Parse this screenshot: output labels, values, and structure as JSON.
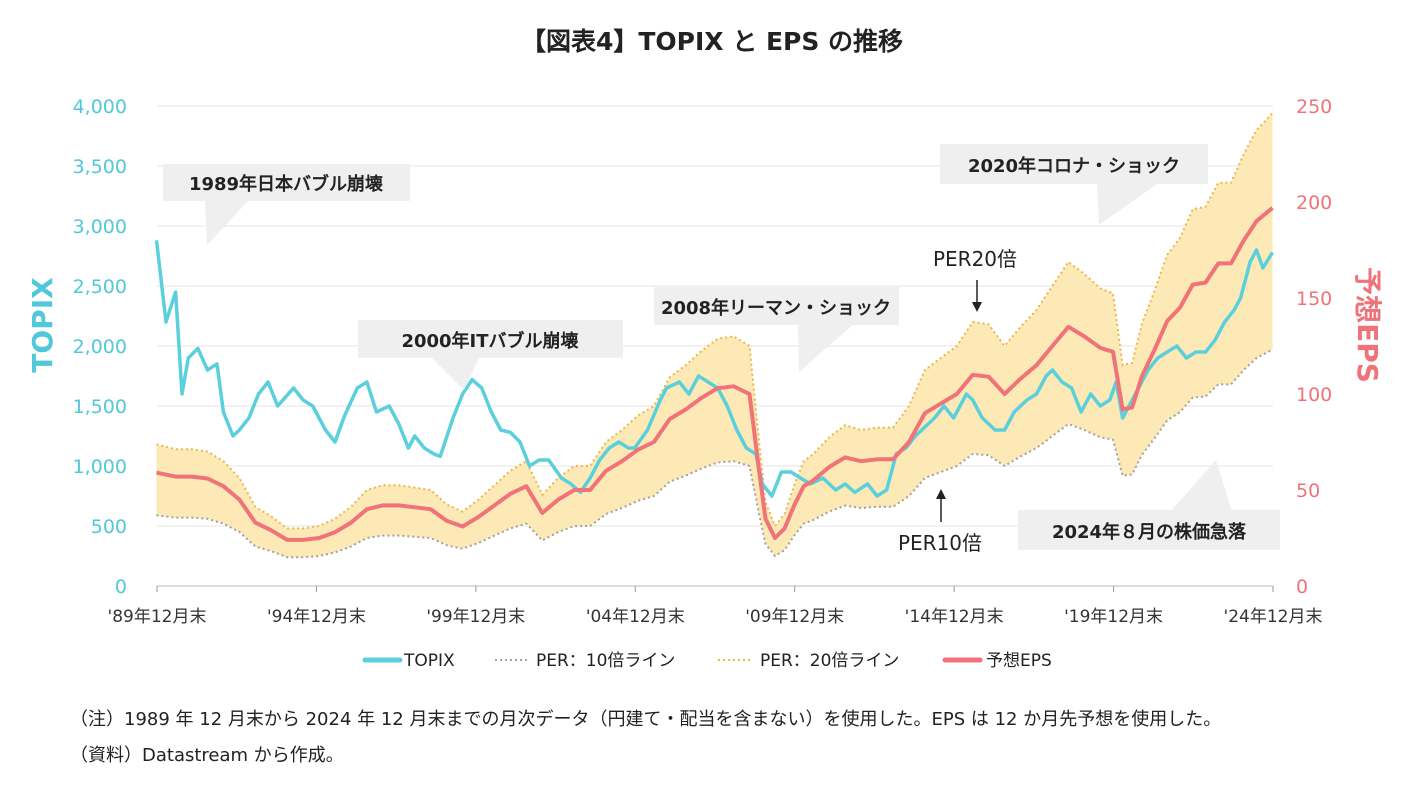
{
  "chart_data": {
    "type": "line",
    "title": "【図表4】TOPIX と EPS の推移",
    "y_left_label": "TOPIX",
    "y_right_label": "予想EPS",
    "y_left_range": [
      0,
      4000
    ],
    "y_right_range": [
      0,
      250
    ],
    "y_left_ticks": [
      "0",
      "500",
      "1,000",
      "1,500",
      "2,000",
      "2,500",
      "3,000",
      "3,500",
      "4,000"
    ],
    "y_right_ticks": [
      "0",
      "50",
      "100",
      "150",
      "200",
      "250"
    ],
    "y_left_tick_values": [
      0,
      500,
      1000,
      1500,
      2000,
      2500,
      3000,
      3500,
      4000
    ],
    "y_right_tick_values": [
      0,
      50,
      100,
      150,
      200,
      250
    ],
    "x_range": [
      1989.917,
      2024.917
    ],
    "x_ticks": [
      "'89年12月末",
      "'94年12月末",
      "'99年12月末",
      "'04年12月末",
      "'09年12月末",
      "'14年12月末",
      "'19年12月末",
      "'24年12月末"
    ],
    "x_tick_values": [
      1989.917,
      1994.917,
      1999.917,
      2004.917,
      2009.917,
      2014.917,
      2019.917,
      2024.917
    ],
    "colors": {
      "topix": "#5bcfdc",
      "eps": "#f0737a",
      "per10": "#a0a0a0",
      "per20": "#e9b84a",
      "band": "#fde9b6"
    },
    "series": [
      {
        "name": "TOPIX",
        "axis": "left",
        "x": [
          1989.9,
          1990.2,
          1990.5,
          1990.7,
          1990.9,
          1991.2,
          1991.5,
          1991.8,
          1992.0,
          1992.3,
          1992.5,
          1992.8,
          1993.1,
          1993.4,
          1993.7,
          1993.9,
          1994.2,
          1994.5,
          1994.8,
          1995.2,
          1995.5,
          1995.8,
          1996.2,
          1996.5,
          1996.8,
          1997.2,
          1997.5,
          1997.8,
          1998.0,
          1998.3,
          1998.6,
          1998.8,
          1999.2,
          1999.5,
          1999.8,
          2000.1,
          2000.4,
          2000.7,
          2001.0,
          2001.3,
          2001.6,
          2001.9,
          2002.2,
          2002.6,
          2002.9,
          2003.2,
          2003.5,
          2003.8,
          2004.1,
          2004.4,
          2004.7,
          2004.9,
          2005.3,
          2005.7,
          2005.9,
          2006.3,
          2006.6,
          2006.9,
          2007.2,
          2007.5,
          2007.8,
          2008.1,
          2008.4,
          2008.7,
          2008.9,
          2009.2,
          2009.5,
          2009.8,
          2010.1,
          2010.4,
          2010.8,
          2011.2,
          2011.5,
          2011.8,
          2012.2,
          2012.5,
          2012.8,
          2013.1,
          2013.4,
          2013.7,
          2013.9,
          2014.3,
          2014.6,
          2014.9,
          2015.3,
          2015.5,
          2015.8,
          2016.2,
          2016.5,
          2016.8,
          2017.2,
          2017.5,
          2017.8,
          2018.0,
          2018.3,
          2018.6,
          2018.9,
          2019.2,
          2019.5,
          2019.8,
          2020.0,
          2020.2,
          2020.5,
          2020.8,
          2021.0,
          2021.3,
          2021.6,
          2021.9,
          2022.2,
          2022.5,
          2022.8,
          2023.1,
          2023.4,
          2023.7,
          2023.9,
          2024.2,
          2024.4,
          2024.6,
          2024.9
        ],
        "values": [
          2881,
          2200,
          2450,
          1600,
          1900,
          1980,
          1800,
          1850,
          1450,
          1250,
          1300,
          1400,
          1600,
          1700,
          1500,
          1560,
          1650,
          1550,
          1500,
          1300,
          1200,
          1420,
          1650,
          1700,
          1450,
          1500,
          1350,
          1150,
          1250,
          1150,
          1100,
          1080,
          1400,
          1600,
          1720,
          1650,
          1450,
          1300,
          1280,
          1200,
          1000,
          1050,
          1050,
          900,
          850,
          780,
          900,
          1050,
          1150,
          1200,
          1150,
          1150,
          1300,
          1550,
          1650,
          1700,
          1600,
          1750,
          1700,
          1650,
          1500,
          1300,
          1150,
          1100,
          850,
          750,
          950,
          950,
          900,
          850,
          900,
          800,
          850,
          780,
          850,
          750,
          800,
          1100,
          1150,
          1250,
          1300,
          1400,
          1500,
          1400,
          1600,
          1550,
          1400,
          1300,
          1300,
          1450,
          1550,
          1600,
          1750,
          1800,
          1700,
          1650,
          1450,
          1600,
          1500,
          1550,
          1700,
          1400,
          1550,
          1700,
          1800,
          1900,
          1950,
          2000,
          1900,
          1950,
          1950,
          2050,
          2200,
          2300,
          2400,
          2700,
          2800,
          2650,
          2780
        ]
      },
      {
        "name": "予想EPS",
        "axis": "right",
        "x": [
          1989.9,
          1990.5,
          1991.0,
          1991.5,
          1992.0,
          1992.5,
          1993.0,
          1993.5,
          1994.0,
          1994.5,
          1995.0,
          1995.5,
          1996.0,
          1996.5,
          1997.0,
          1997.5,
          1998.0,
          1998.5,
          1999.0,
          1999.5,
          2000.0,
          2000.5,
          2001.0,
          2001.5,
          2002.0,
          2002.5,
          2003.0,
          2003.5,
          2004.0,
          2004.5,
          2005.0,
          2005.5,
          2006.0,
          2006.5,
          2007.0,
          2007.5,
          2008.0,
          2008.5,
          2008.8,
          2009.0,
          2009.3,
          2009.6,
          2009.9,
          2010.2,
          2010.5,
          2011.0,
          2011.5,
          2012.0,
          2012.5,
          2013.0,
          2013.5,
          2014.0,
          2014.5,
          2015.0,
          2015.5,
          2016.0,
          2016.5,
          2017.0,
          2017.5,
          2018.0,
          2018.5,
          2019.0,
          2019.5,
          2019.9,
          2020.2,
          2020.5,
          2020.8,
          2021.2,
          2021.6,
          2022.0,
          2022.4,
          2022.8,
          2023.2,
          2023.6,
          2024.0,
          2024.4,
          2024.9
        ],
        "values": [
          59,
          57,
          57,
          56,
          52,
          45,
          33,
          29,
          24,
          24,
          25,
          28,
          33,
          40,
          42,
          42,
          41,
          40,
          34,
          31,
          36,
          42,
          48,
          52,
          38,
          45,
          50,
          50,
          60,
          65,
          71,
          75,
          87,
          92,
          98,
          103,
          104,
          100,
          60,
          35,
          25,
          30,
          42,
          52,
          55,
          62,
          67,
          65,
          66,
          66,
          75,
          90,
          95,
          100,
          110,
          109,
          100,
          108,
          115,
          125,
          135,
          130,
          124,
          122,
          92,
          93,
          109,
          123,
          138,
          145,
          157,
          158,
          168,
          168,
          180,
          190,
          197
        ]
      },
      {
        "name": "PER：10倍ライン",
        "axis": "left",
        "x": [
          1989.9,
          1990.5,
          1991.0,
          1991.5,
          1992.0,
          1992.5,
          1993.0,
          1993.5,
          1994.0,
          1994.5,
          1995.0,
          1995.5,
          1996.0,
          1996.5,
          1997.0,
          1997.5,
          1998.0,
          1998.5,
          1999.0,
          1999.5,
          2000.0,
          2000.5,
          2001.0,
          2001.5,
          2002.0,
          2002.5,
          2003.0,
          2003.5,
          2004.0,
          2004.5,
          2005.0,
          2005.5,
          2006.0,
          2006.5,
          2007.0,
          2007.5,
          2008.0,
          2008.5,
          2008.8,
          2009.0,
          2009.3,
          2009.6,
          2009.9,
          2010.2,
          2010.5,
          2011.0,
          2011.5,
          2012.0,
          2012.5,
          2013.0,
          2013.5,
          2014.0,
          2014.5,
          2015.0,
          2015.5,
          2016.0,
          2016.5,
          2017.0,
          2017.5,
          2018.0,
          2018.5,
          2019.0,
          2019.5,
          2019.9,
          2020.2,
          2020.5,
          2020.8,
          2021.2,
          2021.6,
          2022.0,
          2022.4,
          2022.8,
          2023.2,
          2023.6,
          2024.0,
          2024.4,
          2024.9
        ],
        "values": [
          590,
          570,
          570,
          560,
          520,
          450,
          330,
          290,
          240,
          240,
          250,
          280,
          330,
          400,
          420,
          420,
          410,
          400,
          340,
          310,
          360,
          420,
          480,
          520,
          380,
          450,
          500,
          500,
          600,
          650,
          710,
          750,
          870,
          920,
          980,
          1030,
          1040,
          1000,
          600,
          350,
          250,
          300,
          420,
          520,
          550,
          620,
          670,
          650,
          660,
          660,
          750,
          900,
          950,
          1000,
          1100,
          1090,
          1000,
          1080,
          1150,
          1250,
          1350,
          1300,
          1240,
          1220,
          920,
          930,
          1090,
          1230,
          1380,
          1450,
          1570,
          1580,
          1680,
          1680,
          1800,
          1900,
          1970
        ]
      },
      {
        "name": "PER：20倍ライン",
        "axis": "left",
        "x": [
          1989.9,
          1990.5,
          1991.0,
          1991.5,
          1992.0,
          1992.5,
          1993.0,
          1993.5,
          1994.0,
          1994.5,
          1995.0,
          1995.5,
          1996.0,
          1996.5,
          1997.0,
          1997.5,
          1998.0,
          1998.5,
          1999.0,
          1999.5,
          2000.0,
          2000.5,
          2001.0,
          2001.5,
          2002.0,
          2002.5,
          2003.0,
          2003.5,
          2004.0,
          2004.5,
          2005.0,
          2005.5,
          2006.0,
          2006.5,
          2007.0,
          2007.5,
          2008.0,
          2008.5,
          2008.8,
          2009.0,
          2009.3,
          2009.6,
          2009.9,
          2010.2,
          2010.5,
          2011.0,
          2011.5,
          2012.0,
          2012.5,
          2013.0,
          2013.5,
          2014.0,
          2014.5,
          2015.0,
          2015.5,
          2016.0,
          2016.5,
          2017.0,
          2017.5,
          2018.0,
          2018.5,
          2019.0,
          2019.5,
          2019.9,
          2020.2,
          2020.5,
          2020.8,
          2021.2,
          2021.6,
          2022.0,
          2022.4,
          2022.8,
          2023.2,
          2023.6,
          2024.0,
          2024.4,
          2024.9
        ],
        "values": [
          1180,
          1140,
          1140,
          1120,
          1040,
          900,
          660,
          580,
          480,
          480,
          500,
          560,
          660,
          800,
          840,
          840,
          820,
          800,
          680,
          620,
          720,
          840,
          960,
          1040,
          760,
          900,
          1000,
          1000,
          1200,
          1300,
          1420,
          1500,
          1740,
          1840,
          1960,
          2060,
          2080,
          2000,
          1200,
          700,
          500,
          600,
          840,
          1040,
          1100,
          1240,
          1340,
          1300,
          1320,
          1320,
          1500,
          1800,
          1900,
          2000,
          2200,
          2180,
          2000,
          2160,
          2300,
          2500,
          2700,
          2600,
          2480,
          2440,
          1840,
          1860,
          2180,
          2460,
          2760,
          2900,
          3140,
          3160,
          3360,
          3360,
          3600,
          3800,
          3940
        ]
      }
    ],
    "legend": [
      "TOPIX",
      "PER：10倍ライン",
      "PER：20倍ライン",
      "予想EPS"
    ],
    "annotations": {
      "bubble1989": "1989年日本バブル崩壊",
      "bubble2000": "2000年ITバブル崩壊",
      "lehman2008": "2008年リーマン・ショック",
      "corona2020": "2020年コロナ・ショック",
      "crash2024": "2024年８月の株価急落",
      "per20": "PER20倍",
      "per10": "PER10倍"
    }
  },
  "notes": {
    "note1": "（注）1989 年 12 月末から 2024 年 12 月末までの月次データ（円建て・配当を含まない）を使用した。EPS は 12 か月先予想を使用した。",
    "note2": "（資料）Datastream から作成。"
  }
}
